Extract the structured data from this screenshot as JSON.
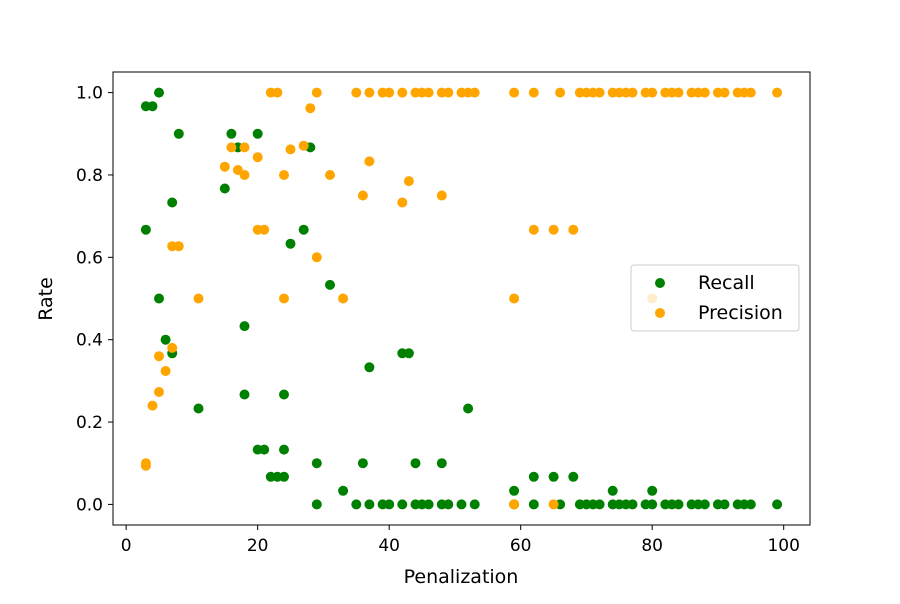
{
  "chart_data": {
    "type": "scatter",
    "title": "",
    "xlabel": "Penalization",
    "ylabel": "Rate",
    "xlim": [
      -2,
      104
    ],
    "ylim": [
      -0.05,
      1.05
    ],
    "xticks": [
      0,
      20,
      40,
      60,
      80,
      100
    ],
    "yticks": [
      0.0,
      0.2,
      0.4,
      0.6,
      0.8,
      1.0
    ],
    "ytick_labels": [
      "0.0",
      "0.2",
      "0.4",
      "0.6",
      "0.8",
      "1.0"
    ],
    "grid": false,
    "legend_position": "center-right",
    "series": [
      {
        "name": "Recall",
        "color": "#008000",
        "points": [
          [
            3,
            0.967
          ],
          [
            3,
            0.667
          ],
          [
            4,
            0.967
          ],
          [
            5,
            1.0
          ],
          [
            5,
            0.5
          ],
          [
            6,
            0.4
          ],
          [
            7,
            0.733
          ],
          [
            7,
            0.367
          ],
          [
            8,
            0.9
          ],
          [
            11,
            0.233
          ],
          [
            15,
            0.767
          ],
          [
            16,
            0.9
          ],
          [
            17,
            0.867
          ],
          [
            18,
            0.433
          ],
          [
            18,
            0.267
          ],
          [
            20,
            0.9
          ],
          [
            20,
            0.133
          ],
          [
            21,
            0.133
          ],
          [
            22,
            0.067
          ],
          [
            23,
            0.067
          ],
          [
            24,
            0.267
          ],
          [
            24,
            0.133
          ],
          [
            24,
            0.067
          ],
          [
            25,
            0.633
          ],
          [
            27,
            0.667
          ],
          [
            28,
            0.867
          ],
          [
            29,
            0.1
          ],
          [
            29,
            0.0
          ],
          [
            31,
            0.533
          ],
          [
            33,
            0.033
          ],
          [
            35,
            0.0
          ],
          [
            36,
            0.1
          ],
          [
            37,
            0.333
          ],
          [
            37,
            0.0
          ],
          [
            39,
            0.0
          ],
          [
            40,
            0.0
          ],
          [
            42,
            0.367
          ],
          [
            42,
            0.0
          ],
          [
            43,
            0.367
          ],
          [
            44,
            0.1
          ],
          [
            44,
            0.0
          ],
          [
            45,
            0.0
          ],
          [
            46,
            0.0
          ],
          [
            48,
            0.1
          ],
          [
            48,
            0.0
          ],
          [
            49,
            0.0
          ],
          [
            51,
            0.0
          ],
          [
            52,
            0.233
          ],
          [
            53,
            0.0
          ],
          [
            59,
            0.033
          ],
          [
            59,
            0.0
          ],
          [
            62,
            0.067
          ],
          [
            62,
            0.0
          ],
          [
            65,
            0.067
          ],
          [
            66,
            0.0
          ],
          [
            68,
            0.067
          ],
          [
            69,
            0.0
          ],
          [
            70,
            0.0
          ],
          [
            71,
            0.0
          ],
          [
            72,
            0.0
          ],
          [
            74,
            0.033
          ],
          [
            74,
            0.0
          ],
          [
            75,
            0.0
          ],
          [
            76,
            0.0
          ],
          [
            77,
            0.0
          ],
          [
            79,
            0.0
          ],
          [
            80,
            0.033
          ],
          [
            80,
            0.0
          ],
          [
            82,
            0.0
          ],
          [
            83,
            0.0
          ],
          [
            84,
            0.0
          ],
          [
            86,
            0.0
          ],
          [
            87,
            0.0
          ],
          [
            88,
            0.0
          ],
          [
            90,
            0.0
          ],
          [
            91,
            0.0
          ],
          [
            93,
            0.0
          ],
          [
            94,
            0.0
          ],
          [
            95,
            0.0
          ],
          [
            99,
            0.0
          ]
        ]
      },
      {
        "name": "Precision",
        "color": "#FFA500",
        "points": [
          [
            3,
            0.1
          ],
          [
            3,
            0.094
          ],
          [
            4,
            0.24
          ],
          [
            5,
            0.36
          ],
          [
            5,
            0.273
          ],
          [
            6,
            0.324
          ],
          [
            7,
            0.627
          ],
          [
            7,
            0.38
          ],
          [
            8,
            0.627
          ],
          [
            11,
            0.5
          ],
          [
            15,
            0.82
          ],
          [
            16,
            0.867
          ],
          [
            17,
            0.812
          ],
          [
            18,
            0.867
          ],
          [
            18,
            0.8
          ],
          [
            20,
            0.843
          ],
          [
            20,
            0.667
          ],
          [
            21,
            0.667
          ],
          [
            22,
            1.0
          ],
          [
            23,
            1.0
          ],
          [
            24,
            0.8
          ],
          [
            24,
            0.5
          ],
          [
            25,
            0.862
          ],
          [
            27,
            0.871
          ],
          [
            28,
            0.962
          ],
          [
            29,
            1.0
          ],
          [
            29,
            0.6
          ],
          [
            31,
            0.8
          ],
          [
            33,
            0.5
          ],
          [
            35,
            1.0
          ],
          [
            36,
            0.75
          ],
          [
            37,
            1.0
          ],
          [
            37,
            0.833
          ],
          [
            39,
            1.0
          ],
          [
            40,
            1.0
          ],
          [
            42,
            1.0
          ],
          [
            42,
            0.733
          ],
          [
            43,
            0.785
          ],
          [
            44,
            1.0
          ],
          [
            45,
            1.0
          ],
          [
            46,
            1.0
          ],
          [
            48,
            1.0
          ],
          [
            48,
            0.75
          ],
          [
            49,
            1.0
          ],
          [
            51,
            1.0
          ],
          [
            52,
            1.0
          ],
          [
            53,
            1.0
          ],
          [
            59,
            1.0
          ],
          [
            59,
            0.5
          ],
          [
            59,
            0.0
          ],
          [
            62,
            1.0
          ],
          [
            62,
            0.667
          ],
          [
            65,
            0.667
          ],
          [
            65,
            0.0
          ],
          [
            66,
            1.0
          ],
          [
            68,
            0.667
          ],
          [
            69,
            1.0
          ],
          [
            70,
            1.0
          ],
          [
            71,
            1.0
          ],
          [
            72,
            1.0
          ],
          [
            74,
            1.0
          ],
          [
            75,
            1.0
          ],
          [
            76,
            1.0
          ],
          [
            77,
            1.0
          ],
          [
            79,
            1.0
          ],
          [
            80,
            1.0
          ],
          [
            80,
            0.5
          ],
          [
            82,
            1.0
          ],
          [
            83,
            1.0
          ],
          [
            84,
            1.0
          ],
          [
            86,
            1.0
          ],
          [
            87,
            1.0
          ],
          [
            88,
            1.0
          ],
          [
            90,
            1.0
          ],
          [
            91,
            1.0
          ],
          [
            93,
            1.0
          ],
          [
            94,
            1.0
          ],
          [
            95,
            1.0
          ],
          [
            99,
            1.0
          ]
        ]
      }
    ]
  }
}
